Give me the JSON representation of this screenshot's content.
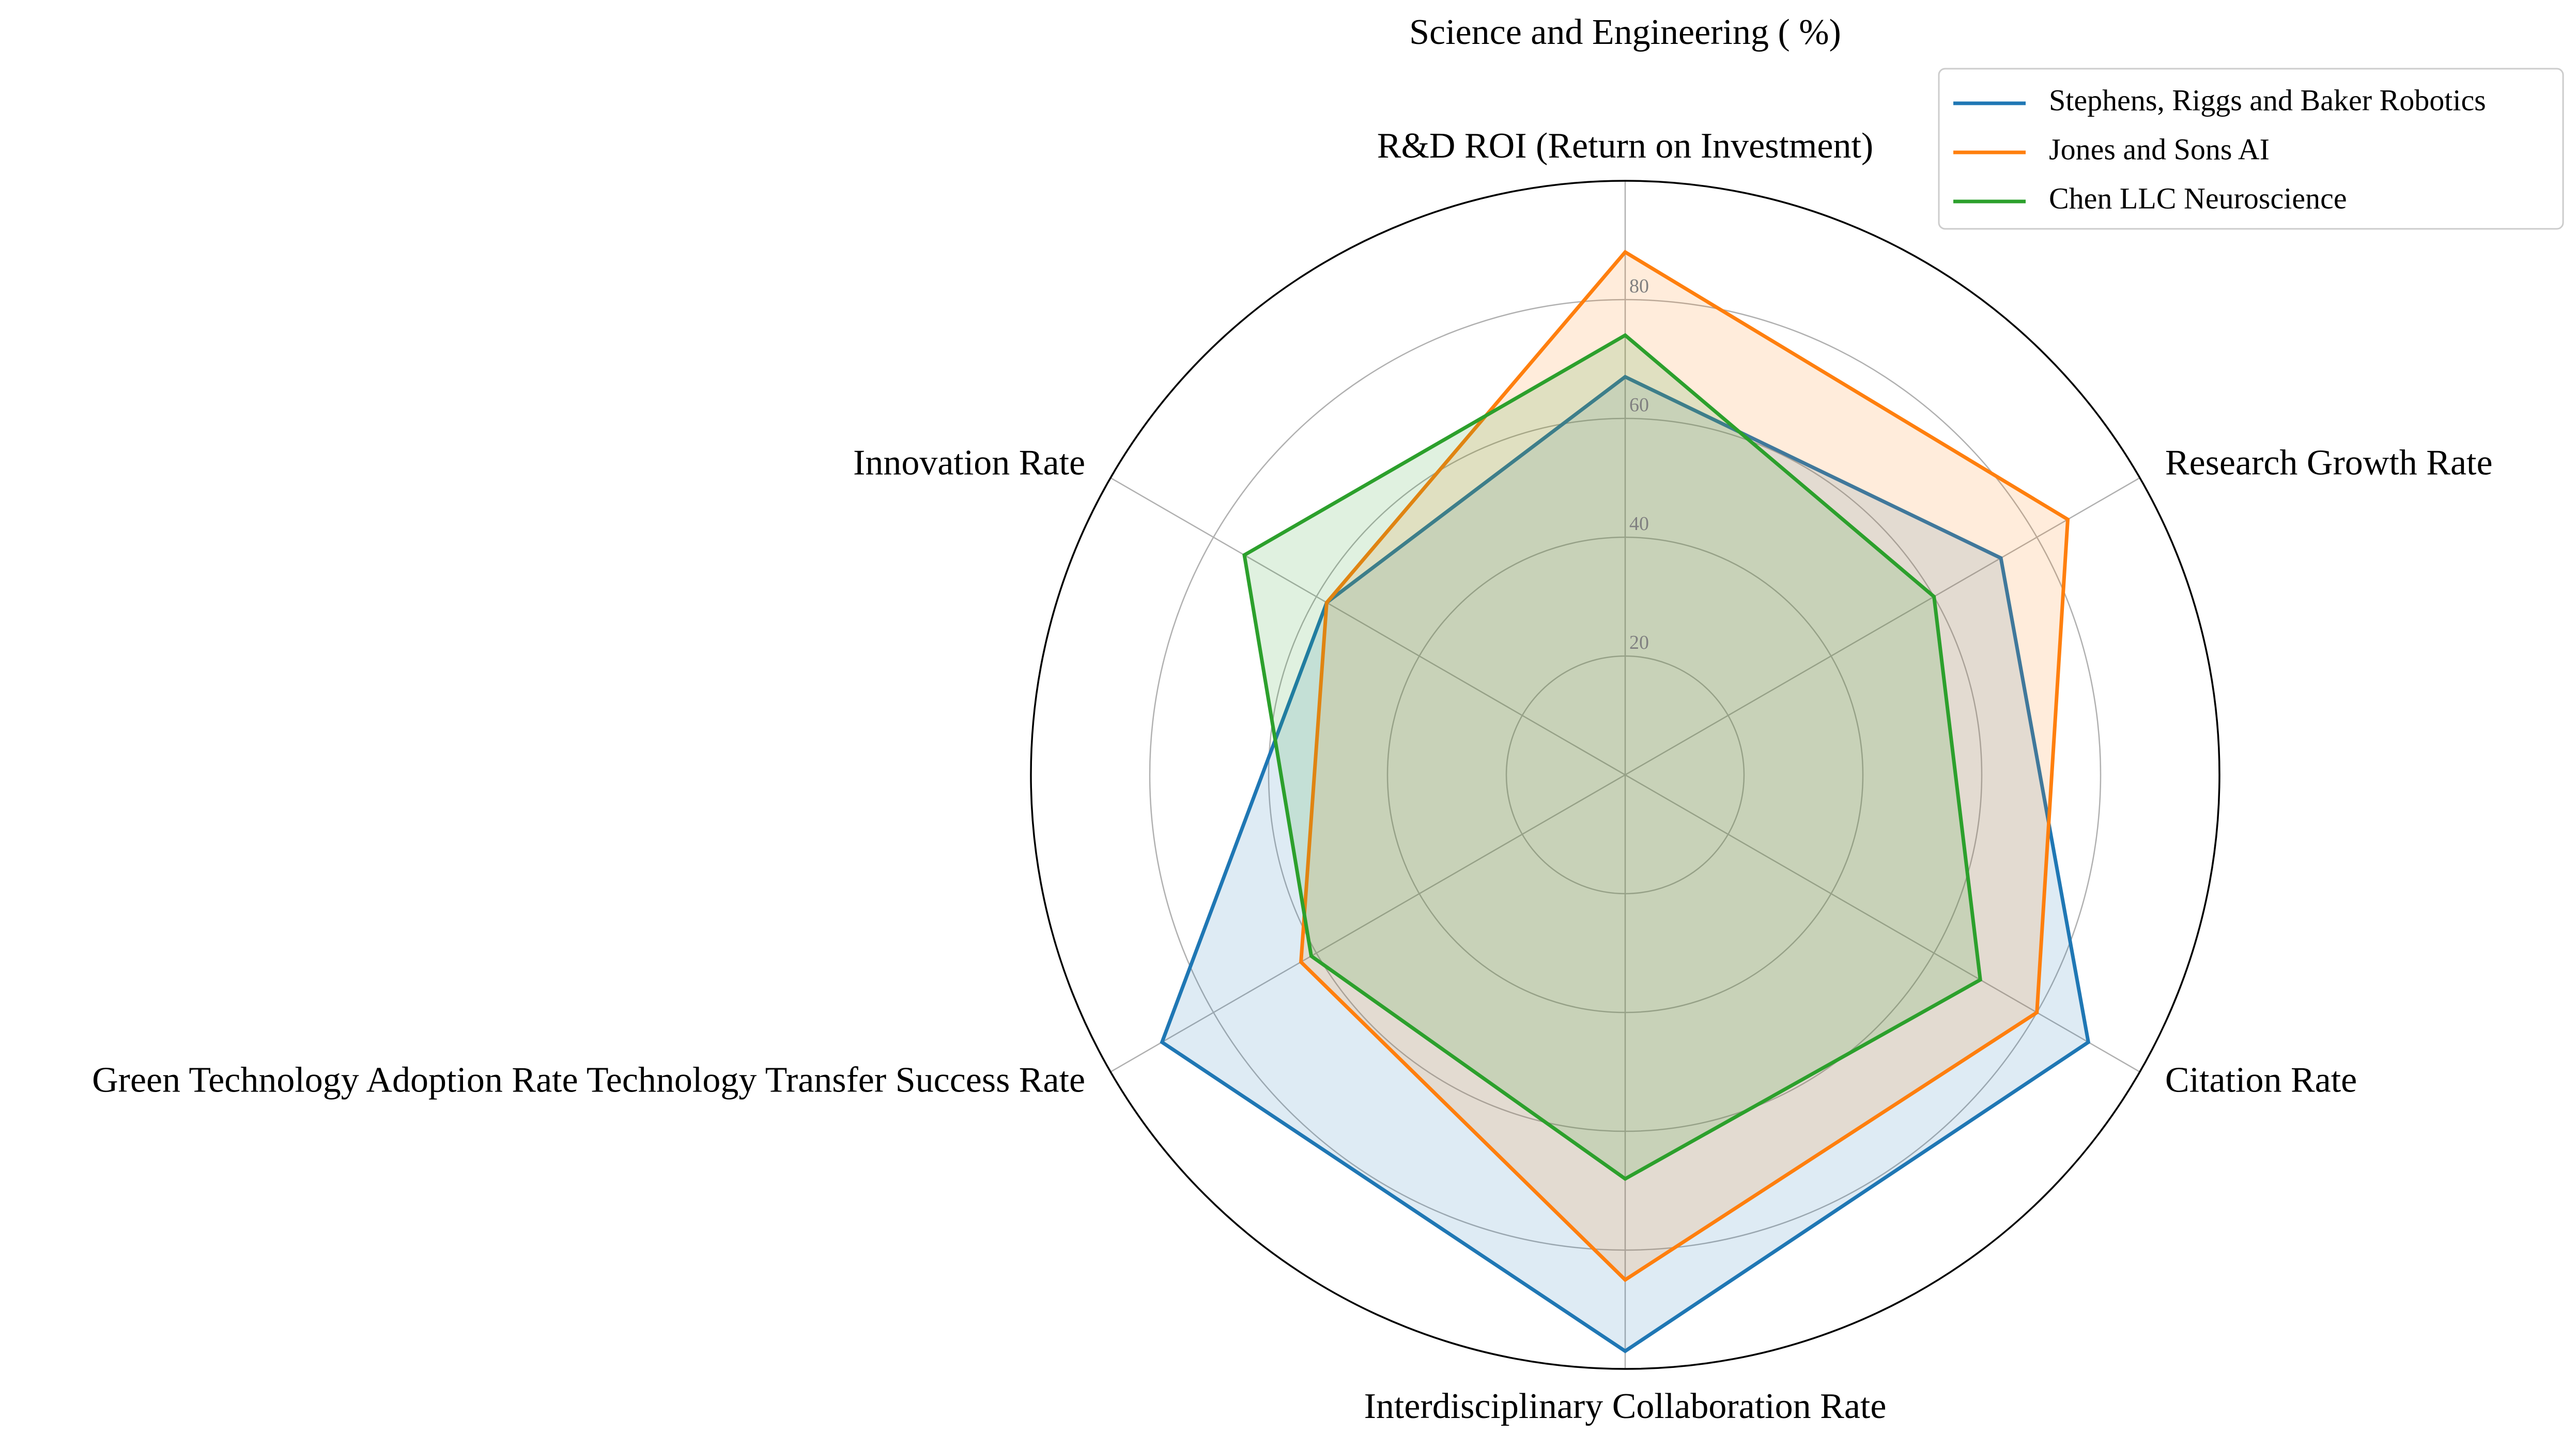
{
  "chart_data": {
    "type": "radar",
    "title": "Science and Engineering ( %)",
    "axes": [
      "R&D ROI (Return on Investment)",
      "Research Growth Rate",
      "Citation Rate",
      "Interdisciplinary Collaboration Rate",
      "Green Technology Adoption Rate Technology Transfer Success Rate",
      "Innovation Rate"
    ],
    "rlim": [
      0,
      100
    ],
    "rticks": [
      20,
      40,
      60,
      80
    ],
    "grid": true,
    "legend_position": "top-right",
    "series": [
      {
        "name": "Stephens, Riggs and Baker Robotics",
        "color": "#1f77b4",
        "values": [
          67,
          73,
          90,
          97,
          90,
          58
        ]
      },
      {
        "name": "Jones and Sons AI",
        "color": "#ff7f0e",
        "values": [
          88,
          86,
          80,
          85,
          63,
          58
        ]
      },
      {
        "name": "Chen LLC Neuroscience",
        "color": "#2ca02c",
        "values": [
          74,
          60,
          69,
          68,
          61,
          74
        ]
      }
    ]
  }
}
